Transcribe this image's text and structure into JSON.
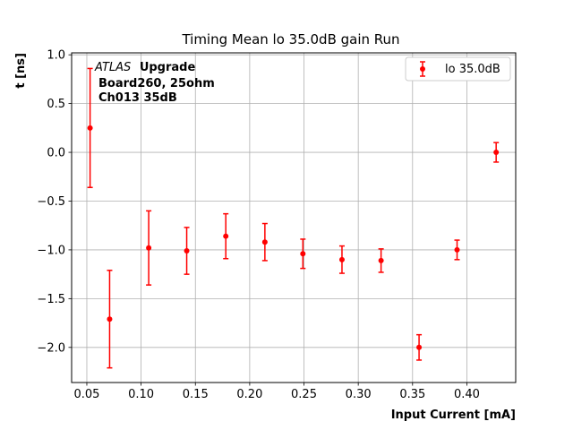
{
  "chart_data": {
    "type": "scatter",
    "title": "Timing Mean lo 35.0dB gain Run",
    "xlabel": "Input Current [mA]",
    "ylabel": "t [ns]",
    "xlim": [
      0.036,
      0.445
    ],
    "ylim": [
      -2.36,
      1.02
    ],
    "xticks": [
      "0.05",
      "0.10",
      "0.15",
      "0.20",
      "0.25",
      "0.30",
      "0.35",
      "0.40"
    ],
    "yticks": [
      "1.0",
      "0.5",
      "0.0",
      "−0.5",
      "−1.0",
      "−1.5",
      "−2.0"
    ],
    "grid": true,
    "legend_position": "top-right",
    "color": "#ff0000",
    "annotation": {
      "italic": "ATLAS",
      "bold": "Upgrade",
      "line2": "Board260, 25ohm",
      "line3": "Ch013 35dB"
    },
    "series": [
      {
        "name": "lo 35.0dB",
        "x": [
          0.053,
          0.071,
          0.107,
          0.142,
          0.178,
          0.214,
          0.249,
          0.285,
          0.321,
          0.356,
          0.391,
          0.427
        ],
        "y": [
          0.25,
          -1.71,
          -0.98,
          -1.01,
          -0.86,
          -0.92,
          -1.04,
          -1.1,
          -1.11,
          -2.0,
          -1.0,
          0.0
        ],
        "yerr": [
          0.61,
          0.5,
          0.38,
          0.24,
          0.23,
          0.19,
          0.15,
          0.14,
          0.12,
          0.13,
          0.1,
          0.1
        ]
      }
    ]
  }
}
